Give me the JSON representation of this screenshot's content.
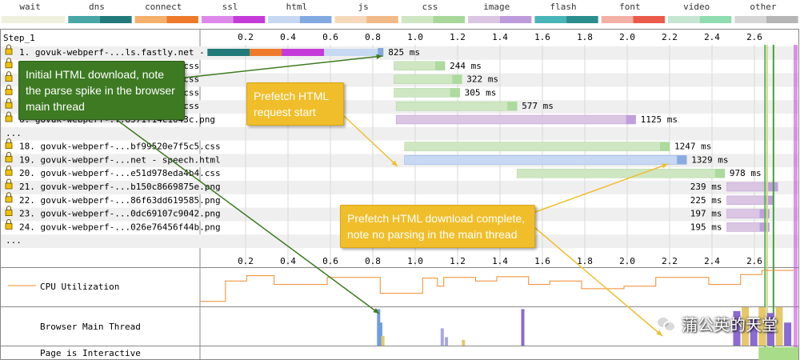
{
  "chart_data": {
    "type": "waterfall",
    "legend": [
      {
        "label": "wait",
        "light": "#f0f0df",
        "dark": "#f0f0df"
      },
      {
        "label": "dns",
        "light": "#48a6a6",
        "dark": "#217a7a"
      },
      {
        "label": "connect",
        "light": "#f5b06b",
        "dark": "#ee7a2a"
      },
      {
        "label": "ssl",
        "light": "#de89ea",
        "dark": "#c43bd9"
      },
      {
        "label": "html",
        "light": "#c6d8f2",
        "dark": "#82a9e0"
      },
      {
        "label": "js",
        "light": "#f6d8bb",
        "dark": "#f1b986"
      },
      {
        "label": "css",
        "light": "#cfe6c2",
        "dark": "#a8d899"
      },
      {
        "label": "image",
        "light": "#dac5e3",
        "dark": "#bd9bda"
      },
      {
        "label": "flash",
        "light": "#48b6b8",
        "dark": "#2a8e8e"
      },
      {
        "label": "font",
        "light": "#f5b0a5",
        "dark": "#ec5a4a"
      },
      {
        "label": "video",
        "light": "#c5e7d2",
        "dark": "#8fdcb0"
      },
      {
        "label": "other",
        "light": "#d6d6d6",
        "dark": "#b5b5b5"
      }
    ],
    "step_label": "Step_1",
    "axis_ticks": [
      "0.2",
      "0.4",
      "0.6",
      "0.8",
      "1.0",
      "1.2",
      "1.4",
      "1.6",
      "1.8",
      "2.0",
      "2.2",
      "2.4",
      "2.6"
    ],
    "xlim": [
      0,
      2.8
    ],
    "requests": [
      {
        "label": "1. govuk-webperf-...ls.fastly.net - /",
        "type": "html",
        "start": 0.02,
        "end": 0.85,
        "duration": "825 ms",
        "segments": [
          {
            "kind": "dns",
            "from": 0.02,
            "to": 0.22
          },
          {
            "kind": "connect",
            "from": 0.22,
            "to": 0.37
          },
          {
            "kind": "ssl",
            "from": 0.37,
            "to": 0.57
          },
          {
            "kind": "html",
            "from": 0.57,
            "to": 0.85
          }
        ]
      },
      {
        "label": "2. govuk-webperf-...1e7ed1b8a0.css",
        "type": "css",
        "start": 0.9,
        "end": 1.14,
        "duration": "244 ms"
      },
      {
        "label": "3. govuk-webperf-...c5dbd5dea8.css",
        "type": "css",
        "start": 0.9,
        "end": 1.22,
        "duration": "322 ms"
      },
      {
        "label": "4. govuk-webperf-...b8f3a84c42.css",
        "type": "css",
        "start": 0.9,
        "end": 1.21,
        "duration": "305 ms"
      },
      {
        "label": "5. govuk-webperf-...39e0a1f7d6.css",
        "type": "css",
        "start": 0.91,
        "end": 1.48,
        "duration": "577 ms"
      },
      {
        "label": "6. govuk-webperf-...8571f14c1043c.png",
        "type": "image",
        "start": 0.91,
        "end": 2.04,
        "duration": "1125 ms"
      },
      {
        "label": "...",
        "type": "gap"
      },
      {
        "label": "18. govuk-webperf-...bf99520e7f5c5.css",
        "type": "css",
        "start": 0.95,
        "end": 2.2,
        "duration": "1247 ms"
      },
      {
        "label": "19. govuk-webperf-...net - speech.html",
        "type": "html",
        "start": 0.95,
        "end": 2.28,
        "duration": "1329 ms"
      },
      {
        "label": "20. govuk-webperf-...e51d978eda4b4.css",
        "type": "css",
        "start": 1.48,
        "end": 2.46,
        "duration": "978 ms"
      },
      {
        "label": "21. govuk-webperf-...b150c8669875e.png",
        "type": "image",
        "start": 2.47,
        "end": 2.71,
        "duration": "239 ms"
      },
      {
        "label": "22. govuk-webperf-...86f63dd619585.png",
        "type": "image",
        "start": 2.47,
        "end": 2.69,
        "duration": "225 ms"
      },
      {
        "label": "23. govuk-webperf-...0dc69107c9042.png",
        "type": "image",
        "start": 2.47,
        "end": 2.67,
        "duration": "197 ms"
      },
      {
        "label": "24. govuk-webperf-...026e76456f44b.png",
        "type": "image",
        "start": 2.47,
        "end": 2.67,
        "duration": "195 ms"
      },
      {
        "label": "...",
        "type": "gap"
      }
    ],
    "markers": [
      {
        "time": 2.65,
        "color": "#5cb85c"
      },
      {
        "time": 2.69,
        "color": "#3fa33f"
      },
      {
        "time": 2.66,
        "color": "#d8d890"
      }
    ],
    "cpu_label": "CPU Utilization",
    "cpu_points": [
      [
        0,
        12
      ],
      [
        0.12,
        12
      ],
      [
        0.12,
        70
      ],
      [
        0.22,
        70
      ],
      [
        0.22,
        85
      ],
      [
        0.35,
        85
      ],
      [
        0.35,
        60
      ],
      [
        0.6,
        60
      ],
      [
        0.6,
        80
      ],
      [
        0.85,
        80
      ],
      [
        0.85,
        35
      ],
      [
        1.05,
        35
      ],
      [
        1.05,
        78
      ],
      [
        1.12,
        78
      ],
      [
        1.12,
        55
      ],
      [
        1.15,
        55
      ],
      [
        1.15,
        80
      ],
      [
        1.3,
        80
      ],
      [
        1.3,
        70
      ],
      [
        1.4,
        70
      ],
      [
        1.4,
        82
      ],
      [
        1.55,
        82
      ],
      [
        1.55,
        60
      ],
      [
        1.65,
        60
      ],
      [
        1.65,
        70
      ],
      [
        1.8,
        70
      ],
      [
        1.8,
        48
      ],
      [
        2.0,
        48
      ],
      [
        2.0,
        55
      ],
      [
        2.15,
        55
      ],
      [
        2.15,
        80
      ],
      [
        2.4,
        80
      ],
      [
        2.4,
        60
      ],
      [
        2.55,
        60
      ],
      [
        2.55,
        88
      ],
      [
        2.65,
        88
      ],
      [
        2.65,
        100
      ],
      [
        2.8,
        100
      ]
    ],
    "main_thread_label": "Browser Main Thread",
    "main_thread_spikes": [
      {
        "time": 0.82,
        "height": 0.95,
        "color": "#6f9de0"
      },
      {
        "time": 0.83,
        "height": 0.6,
        "color": "#6f9de0"
      },
      {
        "time": 0.84,
        "height": 0.25,
        "color": "#e6c86a"
      },
      {
        "time": 1.12,
        "height": 0.45,
        "color": "#a8a8e0"
      },
      {
        "time": 1.14,
        "height": 0.22,
        "color": "#a8a8e0"
      },
      {
        "time": 1.5,
        "height": 0.95,
        "color": "#8a6ad4"
      },
      {
        "time": 1.22,
        "height": 0.15,
        "color": "#e6c86a"
      },
      {
        "time": 2.5,
        "height": 0.9,
        "color": "#8a6ad4"
      },
      {
        "time": 2.54,
        "height": 1.0,
        "color": "#e6c86a"
      },
      {
        "time": 2.58,
        "height": 0.7,
        "color": "#8a6ad4"
      },
      {
        "time": 2.62,
        "height": 1.0,
        "color": "#e6c86a"
      },
      {
        "time": 2.66,
        "height": 0.85,
        "color": "#8a6ad4"
      },
      {
        "time": 2.7,
        "height": 1.0,
        "color": "#e6c86a"
      },
      {
        "time": 2.74,
        "height": 0.6,
        "color": "#8a6ad4"
      }
    ],
    "interactive_label": "Page is Interactive",
    "interactive_from": 2.62
  },
  "annotations": {
    "initial_html": "Initial HTML download, note\nthe parse spike in the browser\nmain thread",
    "prefetch_start": "Prefetch HTML\nrequest start",
    "prefetch_complete": "Prefetch HTML download complete,\nnote no parsing in the main thread"
  },
  "watermark": "蒲公英的天堂"
}
